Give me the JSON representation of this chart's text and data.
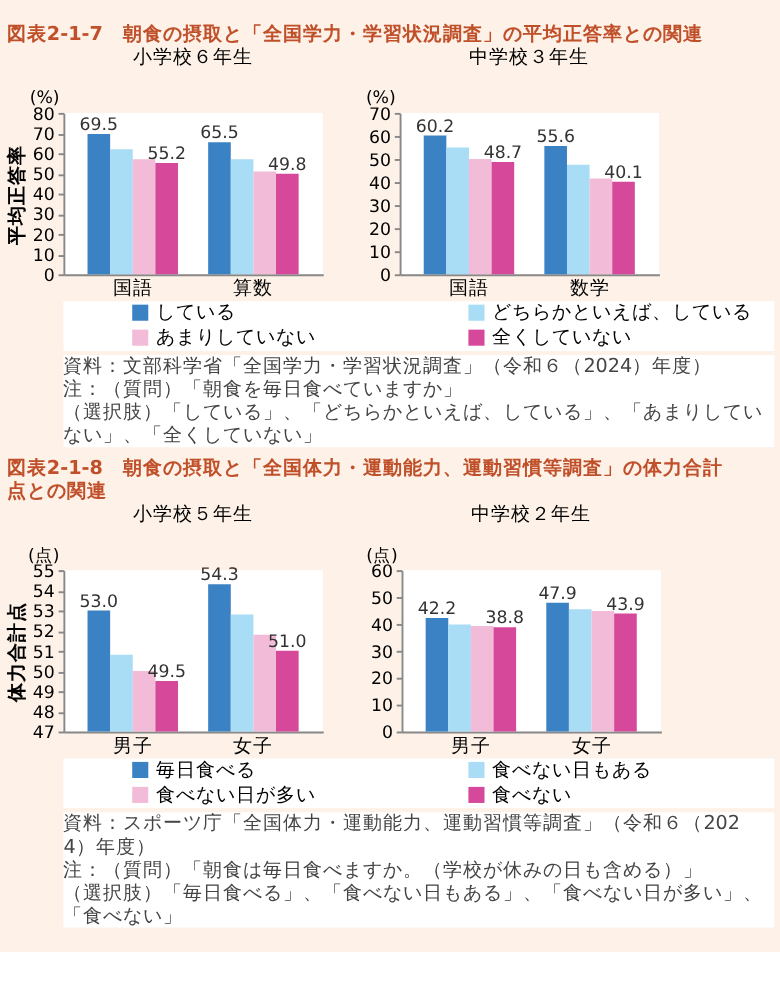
{
  "chart_data": [
    {
      "type": "bar",
      "title": "図表2-1-7　朝食の摂取と「全国学力・学習状況調査」の平均正答率との関連",
      "subtitle": "小学校６年生",
      "ylabel": "平均正答率",
      "annotations": [
        "(%)"
      ],
      "categories": [
        "国語",
        "算数"
      ],
      "ylim": [
        0,
        80
      ],
      "yticks": [
        0,
        10,
        20,
        30,
        40,
        50,
        60,
        70,
        80
      ],
      "legend": "bottom",
      "grid": false,
      "series": [
        {
          "name": "している",
          "color": "#3b82c4",
          "values": [
            69.5,
            65.5
          ],
          "value_labels": [
            "69.5",
            "65.5"
          ]
        },
        {
          "name": "どちらかといえば、している",
          "color": "#a9dcf5",
          "values": [
            62,
            57
          ],
          "value_labels": [
            null,
            null
          ]
        },
        {
          "name": "あまりしていない",
          "color": "#f2bcd8",
          "values": [
            57,
            51
          ],
          "value_labels": [
            null,
            null
          ]
        },
        {
          "name": "全くしていない",
          "color": "#d6489a",
          "values": [
            55.2,
            49.8
          ],
          "value_labels": [
            "55.2",
            "49.8"
          ]
        }
      ]
    },
    {
      "type": "bar",
      "subtitle": "中学校３年生",
      "annotations": [
        "(%)",
        "資料：文部科学省「全国学力・学習状況調査」（令和６（2024）年度）",
        "注：（質問）「朝食を毎日食べていますか」",
        "（選択肢）「している」、「どちらかといえば、している」、「あまりしていない」、「全くしていない」"
      ],
      "categories": [
        "国語",
        "数学"
      ],
      "ylim": [
        0,
        70
      ],
      "yticks": [
        0,
        10,
        20,
        30,
        40,
        50,
        60,
        70
      ],
      "grid": false,
      "series": [
        {
          "color": "#3b82c4",
          "values": [
            60.2,
            55.6
          ],
          "value_labels": [
            "60.2",
            "55.6"
          ]
        },
        {
          "color": "#a9dcf5",
          "values": [
            55,
            47.5
          ],
          "value_labels": [
            null,
            null
          ]
        },
        {
          "color": "#f2bcd8",
          "values": [
            50,
            41.5
          ],
          "value_labels": [
            null,
            null
          ]
        },
        {
          "color": "#d6489a",
          "values": [
            48.7,
            40.1
          ],
          "value_labels": [
            "48.7",
            "40.1"
          ]
        }
      ]
    },
    {
      "type": "bar",
      "title": "図表2-1-8　朝食の摂取と「全国体力・運動能力、運動習慣等調査」の体力合計点との関連",
      "subtitle": "小学校５年生",
      "ylabel": "体力合計点",
      "annotations": [
        "(点)"
      ],
      "categories": [
        "男子",
        "女子"
      ],
      "ylim": [
        47,
        55
      ],
      "yticks": [
        47,
        48,
        49,
        50,
        51,
        52,
        53,
        54,
        55
      ],
      "legend": "bottom",
      "grid": false,
      "series": [
        {
          "name": "毎日食べる",
          "color": "#3b82c4",
          "values": [
            53.0,
            54.3
          ],
          "value_labels": [
            "53.0",
            "54.3"
          ]
        },
        {
          "name": "食べない日もある",
          "color": "#a9dcf5",
          "values": [
            50.8,
            52.8
          ],
          "value_labels": [
            null,
            null
          ]
        },
        {
          "name": "食べない日が多い",
          "color": "#f2bcd8",
          "values": [
            50.0,
            51.8
          ],
          "value_labels": [
            null,
            null
          ]
        },
        {
          "name": "食べない",
          "color": "#d6489a",
          "values": [
            49.5,
            51.0
          ],
          "value_labels": [
            "49.5",
            "51.0"
          ]
        }
      ]
    },
    {
      "type": "bar",
      "subtitle": "中学校２年生",
      "annotations": [
        "(点)",
        "資料：スポーツ庁「全国体力・運動能力、運動習慣等調査」（令和６（2024）年度）",
        "注：（質問）「朝食は毎日食べますか。（学校が休みの日も含める）」",
        "（選択肢）「毎日食べる」、「食べない日もある」、「食べない日が多い」、「食べない」"
      ],
      "categories": [
        "男子",
        "女子"
      ],
      "ylim": [
        0,
        60
      ],
      "yticks": [
        0,
        10,
        20,
        30,
        40,
        50,
        60
      ],
      "grid": false,
      "series": [
        {
          "color": "#3b82c4",
          "values": [
            42.2,
            47.9
          ],
          "value_labels": [
            "42.2",
            "47.9"
          ]
        },
        {
          "color": "#a9dcf5",
          "values": [
            39.8,
            45.5
          ],
          "value_labels": [
            null,
            null
          ]
        },
        {
          "color": "#f2bcd8",
          "values": [
            39.2,
            44.8
          ],
          "value_labels": [
            null,
            null
          ]
        },
        {
          "color": "#d6489a",
          "values": [
            38.8,
            43.9
          ],
          "value_labels": [
            "38.8",
            "43.9"
          ]
        }
      ]
    }
  ]
}
